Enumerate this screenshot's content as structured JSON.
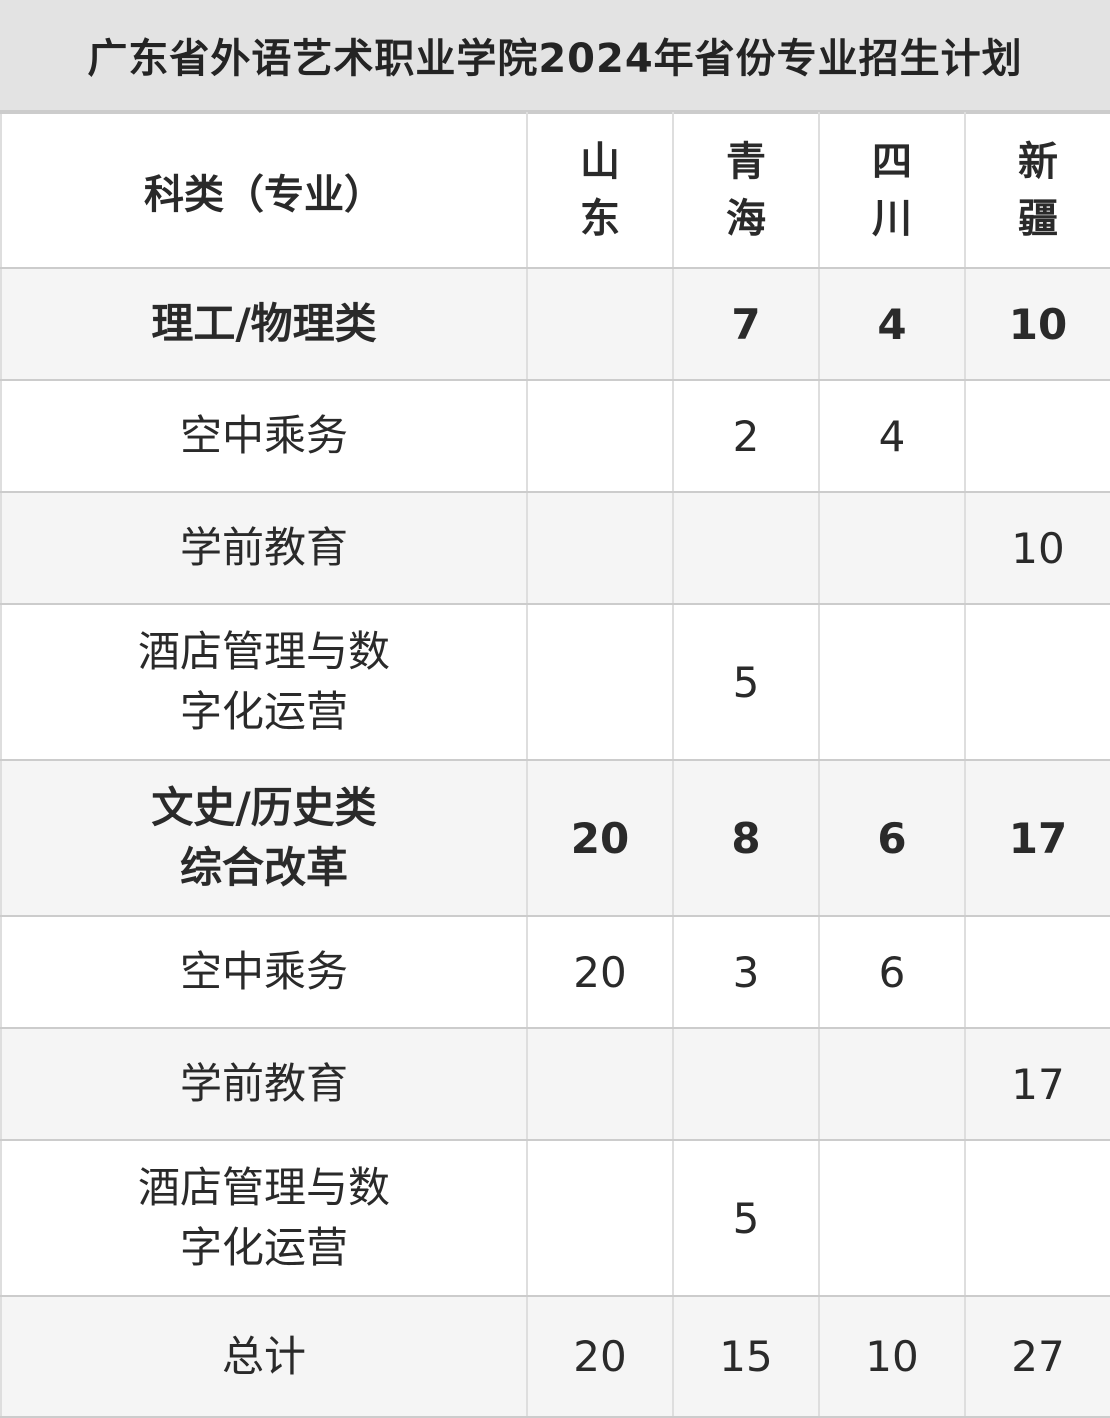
{
  "page": {
    "title": "广东省外语艺术职业学院2024年省份专业招生计划"
  },
  "table": {
    "header": {
      "category": "科类（专业）",
      "provinces": [
        "山\n东",
        "青\n海",
        "四\n川",
        "新\n疆"
      ]
    }
  },
  "chart_data": {
    "type": "table",
    "title": "广东省外语艺术职业学院2024年省份专业招生计划",
    "columns": [
      "科类（专业）",
      "山东",
      "青海",
      "四川",
      "新疆"
    ],
    "rows": [
      {
        "label": "理工/物理类",
        "emphasis": true,
        "values": [
          "",
          "7",
          "4",
          "10"
        ]
      },
      {
        "label": "空中乘务",
        "emphasis": false,
        "values": [
          "",
          "2",
          "4",
          ""
        ]
      },
      {
        "label": "学前教育",
        "emphasis": false,
        "values": [
          "",
          "",
          "",
          "10"
        ]
      },
      {
        "label": "酒店管理与数\n字化运营",
        "emphasis": false,
        "values": [
          "",
          "5",
          "",
          ""
        ]
      },
      {
        "label": "文史/历史类\n综合改革",
        "emphasis": true,
        "values": [
          "20",
          "8",
          "6",
          "17"
        ]
      },
      {
        "label": "空中乘务",
        "emphasis": false,
        "values": [
          "20",
          "3",
          "6",
          ""
        ]
      },
      {
        "label": "学前教育",
        "emphasis": false,
        "values": [
          "",
          "",
          "",
          "17"
        ]
      },
      {
        "label": "酒店管理与数\n字化运营",
        "emphasis": false,
        "values": [
          "",
          "5",
          "",
          ""
        ]
      },
      {
        "label": "总计",
        "emphasis": false,
        "values": [
          "20",
          "15",
          "10",
          "27"
        ]
      }
    ]
  },
  "colors": {
    "title_bg": "#e3e3e3",
    "band_bg": "#f5f5f5",
    "border_horizontal": "#cccccc",
    "border_vertical": "#dedede",
    "text": "#2a2a2a"
  }
}
